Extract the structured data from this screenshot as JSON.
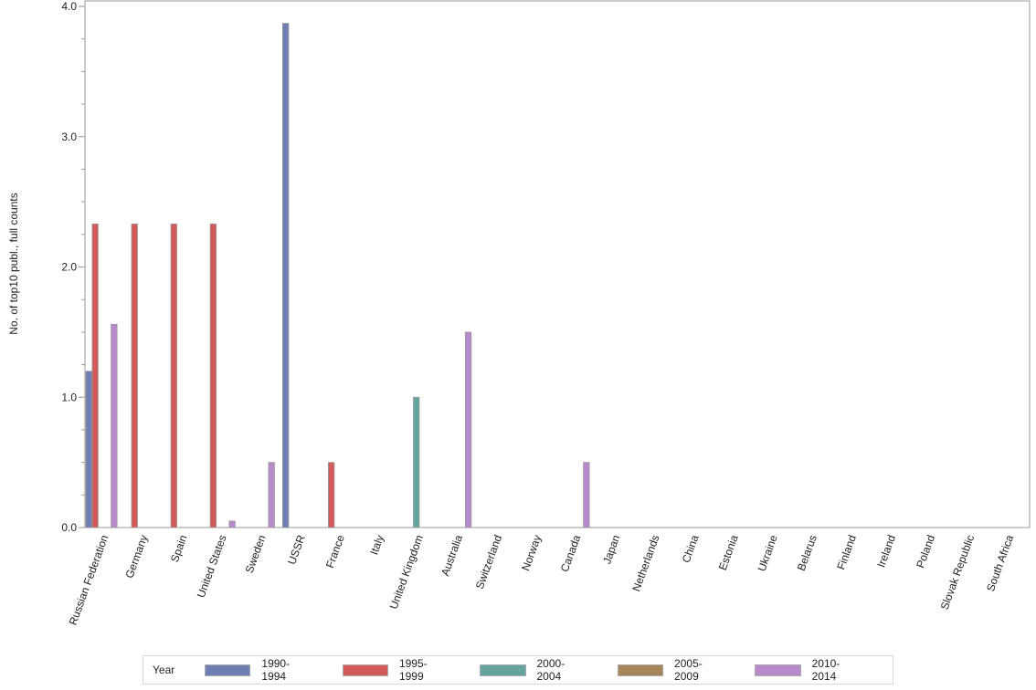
{
  "chart_data": {
    "type": "bar",
    "ylabel": "No. of top10 publ., full counts",
    "xlabel": "",
    "ylim": [
      0,
      4
    ],
    "yticks": [
      "0.0",
      "1.0",
      "2.0",
      "3.0",
      "4.0"
    ],
    "legend_title": "Year",
    "legend_position": "bottom",
    "categories": [
      "Russian Federation",
      "Germany",
      "Spain",
      "United States",
      "Sweden",
      "USSR",
      "France",
      "Italy",
      "United Kingdom",
      "Australia",
      "Switzerland",
      "Norway",
      "Canada",
      "Japan",
      "Netherlands",
      "China",
      "Estonia",
      "Ukraine",
      "Belarus",
      "Finland",
      "Ireland",
      "Poland",
      "Slovak Republic",
      "South Africa"
    ],
    "series": [
      {
        "name": "1990-1994",
        "color": "#6f7fb5",
        "values": [
          1.2,
          0,
          0,
          0,
          0,
          3.87,
          0,
          0,
          0,
          0,
          0,
          0,
          0,
          0,
          0,
          0,
          0,
          0,
          0,
          0,
          0,
          0,
          0,
          0
        ]
      },
      {
        "name": "1995-1999",
        "color": "#d35a5a",
        "values": [
          2.33,
          2.33,
          2.33,
          2.33,
          0,
          0,
          0.5,
          0,
          0,
          0,
          0,
          0,
          0,
          0,
          0,
          0,
          0,
          0,
          0,
          0,
          0,
          0,
          0,
          0
        ]
      },
      {
        "name": "2000-2004",
        "color": "#66a59f",
        "values": [
          0,
          0,
          0,
          0,
          0,
          0,
          0,
          0,
          1.0,
          0,
          0,
          0,
          0,
          0,
          0,
          0,
          0,
          0,
          0,
          0,
          0,
          0,
          0,
          0
        ]
      },
      {
        "name": "2005-2009",
        "color": "#a88459",
        "values": [
          0,
          0,
          0,
          0,
          0,
          0,
          0,
          0,
          0,
          0,
          0,
          0,
          0,
          0,
          0,
          0,
          0,
          0,
          0,
          0,
          0,
          0,
          0,
          0
        ]
      },
      {
        "name": "2010-2014",
        "color": "#b88acc",
        "values": [
          1.56,
          0,
          0,
          0.05,
          0.5,
          0,
          0,
          0,
          0,
          1.5,
          0,
          0,
          0.5,
          0,
          0,
          0,
          0,
          0,
          0,
          0,
          0,
          0,
          0,
          0
        ]
      }
    ]
  }
}
